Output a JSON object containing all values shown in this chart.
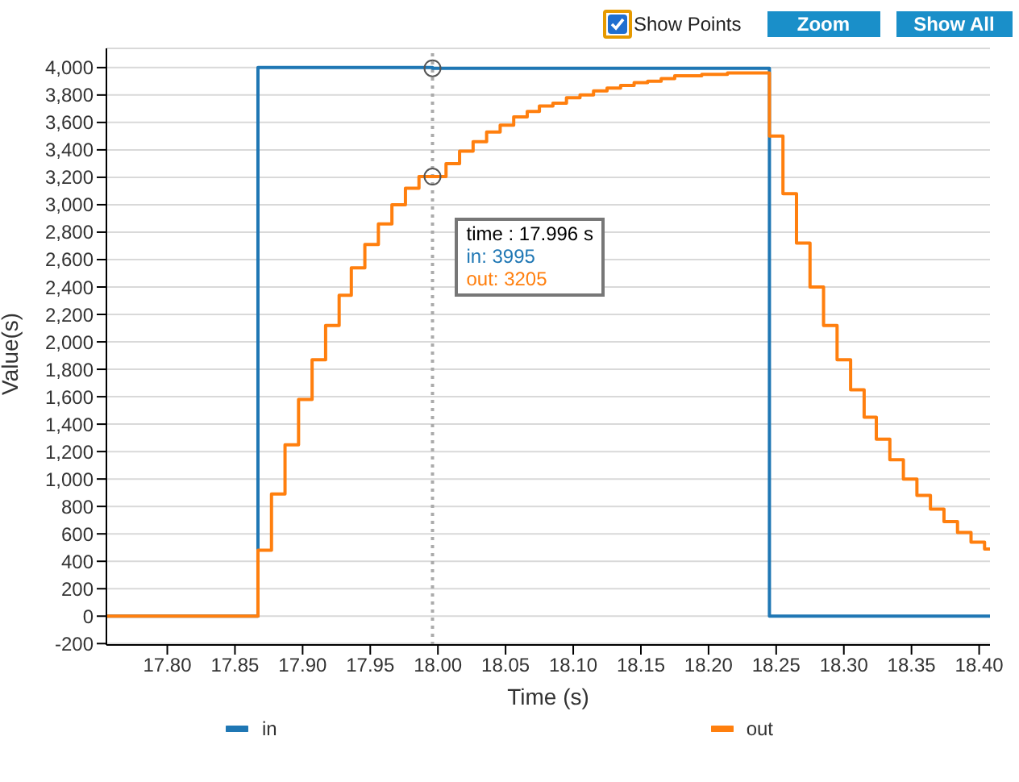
{
  "chart_data": {
    "type": "step",
    "xlabel": "Time (s)",
    "ylabel": "Value(s)",
    "xlim": [
      17.755,
      18.408
    ],
    "ylim": [
      -210,
      4140
    ],
    "xticks": [
      {
        "value": 17.8,
        "label": "17.80"
      },
      {
        "value": 17.85,
        "label": "17.85"
      },
      {
        "value": 17.9,
        "label": "17.90"
      },
      {
        "value": 17.95,
        "label": "17.95"
      },
      {
        "value": 18.0,
        "label": "18.00"
      },
      {
        "value": 18.05,
        "label": "18.05"
      },
      {
        "value": 18.1,
        "label": "18.10"
      },
      {
        "value": 18.15,
        "label": "18.15"
      },
      {
        "value": 18.2,
        "label": "18.20"
      },
      {
        "value": 18.25,
        "label": "18.25"
      },
      {
        "value": 18.3,
        "label": "18.30"
      },
      {
        "value": 18.35,
        "label": "18.35"
      },
      {
        "value": 18.4,
        "label": "18.40"
      }
    ],
    "yticks": [
      -200,
      0,
      200,
      400,
      600,
      800,
      {
        "value": 1000,
        "label": "1,000"
      },
      {
        "value": 1200,
        "label": "1,200"
      },
      {
        "value": 1400,
        "label": "1,400"
      },
      {
        "value": 1600,
        "label": "1,600"
      },
      {
        "value": 1800,
        "label": "1,800"
      },
      {
        "value": 2000,
        "label": "2,000"
      },
      {
        "value": 2200,
        "label": "2,200"
      },
      {
        "value": 2400,
        "label": "2,400"
      },
      {
        "value": 2600,
        "label": "2,600"
      },
      {
        "value": 2800,
        "label": "2,800"
      },
      {
        "value": 3000,
        "label": "3,000"
      },
      {
        "value": 3200,
        "label": "3,200"
      },
      {
        "value": 3400,
        "label": "3,400"
      },
      {
        "value": 3600,
        "label": "3,600"
      },
      {
        "value": 3800,
        "label": "3,800"
      },
      {
        "value": 4000,
        "label": "4,000"
      }
    ],
    "grid": "y",
    "legend": "bottom",
    "marker": "none",
    "line_style": "solid",
    "series": [
      {
        "name": "in",
        "color": "#1f77b4",
        "x": [
          17.755,
          17.867,
          17.996,
          18.245,
          18.408
        ],
        "values": [
          0,
          4000,
          3995,
          0,
          0
        ]
      },
      {
        "name": "out",
        "color": "#ff7f0e",
        "x": [
          17.755,
          17.867,
          17.877,
          17.887,
          17.897,
          17.907,
          17.917,
          17.927,
          17.936,
          17.946,
          17.956,
          17.966,
          17.976,
          17.986,
          17.996,
          18.006,
          18.016,
          18.026,
          18.036,
          18.046,
          18.056,
          18.066,
          18.075,
          18.085,
          18.095,
          18.105,
          18.115,
          18.125,
          18.135,
          18.145,
          18.155,
          18.165,
          18.175,
          18.185,
          18.195,
          18.205,
          18.214,
          18.224,
          18.234,
          18.245,
          18.255,
          18.265,
          18.275,
          18.285,
          18.295,
          18.305,
          18.315,
          18.324,
          18.334,
          18.344,
          18.354,
          18.364,
          18.374,
          18.384,
          18.394,
          18.404,
          18.408
        ],
        "values": [
          0,
          480,
          890,
          1250,
          1580,
          1870,
          2120,
          2340,
          2540,
          2710,
          2860,
          3000,
          3120,
          3205,
          3205,
          3300,
          3390,
          3460,
          3530,
          3580,
          3640,
          3680,
          3720,
          3740,
          3780,
          3800,
          3830,
          3850,
          3870,
          3890,
          3900,
          3920,
          3940,
          3940,
          3950,
          3950,
          3960,
          3960,
          3960,
          3500,
          3080,
          2720,
          2400,
          2120,
          1870,
          1650,
          1450,
          1290,
          1140,
          1000,
          880,
          780,
          690,
          610,
          540,
          490,
          490
        ]
      }
    ],
    "ref_lines": [
      {
        "axis": "x",
        "value": 17.996,
        "color": "#aaaaaa",
        "line_style": "dotted"
      }
    ],
    "annotations": [
      "Show Points",
      "Zoom",
      "Show All",
      "time : 17.996 s",
      "in: 3995",
      "out: 3205"
    ]
  }
}
